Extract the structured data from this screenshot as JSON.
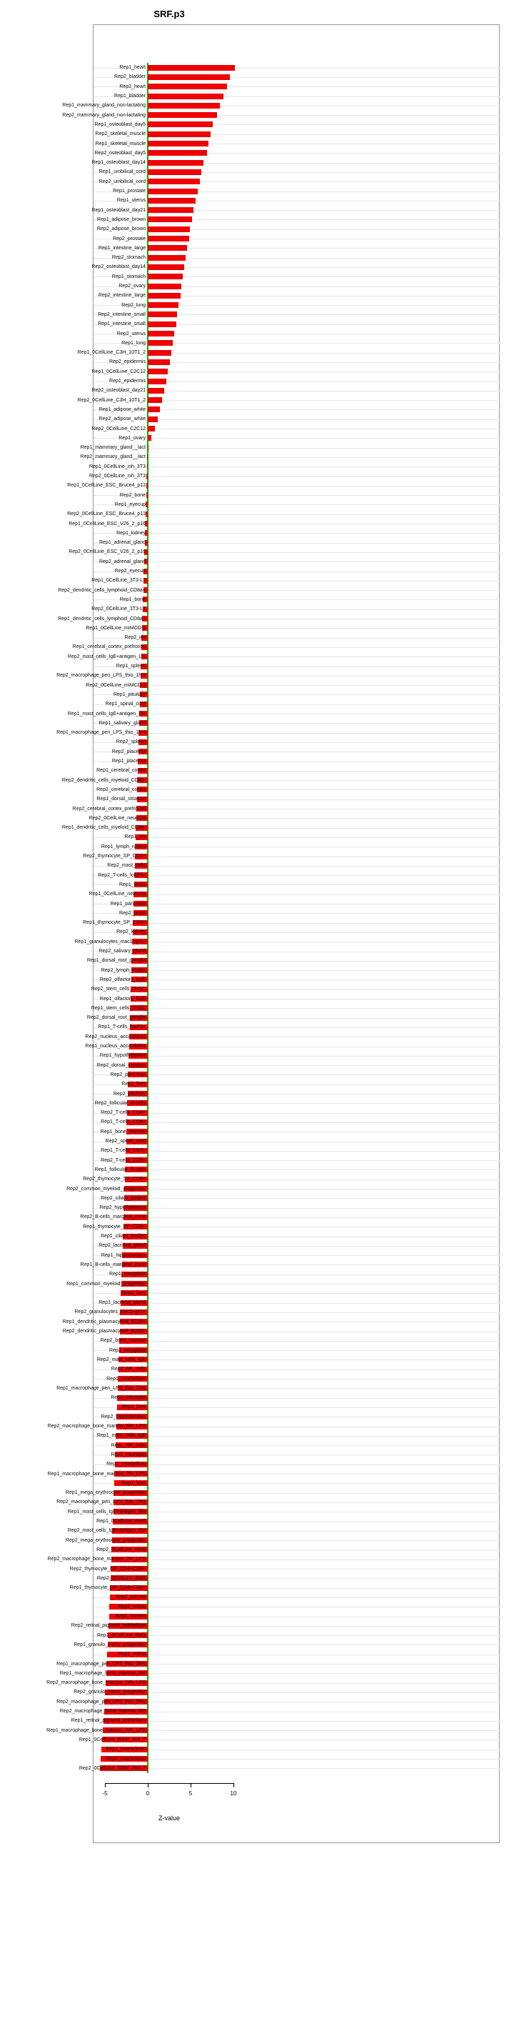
{
  "title": "SRF.p3",
  "xlabel": "Z-value",
  "colors": {
    "bar": "#ee0000",
    "zero_line": "#00bb00",
    "grid": "#e7e7e7",
    "frame": "#9a9a9a",
    "text": "#111111"
  },
  "chart_data": {
    "type": "bar",
    "orientation": "horizontal",
    "title": "SRF.p3",
    "xlabel": "Z-value",
    "ylabel": "",
    "xlim": [
      -6.5,
      11
    ],
    "x_ticks": [
      -5,
      0,
      5,
      10
    ],
    "x_tick_labels": [
      "-5",
      "0",
      "5",
      "10"
    ],
    "grid": true,
    "sorted": "descending",
    "legend": "none",
    "categories": [
      "Rep1_heart",
      "Rep2_bladder",
      "Rep2_heart",
      "Rep1_bladder",
      "Rep1_mammary_gland_non-lactating",
      "Rep2_mammary_gland_non-lactating",
      "Rep1_osteoblast_day5",
      "Rep2_skeletal_muscle",
      "Rep1_skeletal_muscle",
      "Rep2_osteoblast_day5",
      "Rep1_osteoblast_day14",
      "Rep1_umbilical_cord",
      "Rep2_umbilical_cord",
      "Rep1_prostate",
      "Rep1_uterus",
      "Rep1_osteoblast_day21",
      "Rep1_adipose_brown",
      "Rep2_adipose_brown",
      "Rep2_prostate",
      "Rep1_intestine_large",
      "Rep2_stomach",
      "Rep2_osteoblast_day14",
      "Rep1_stomach",
      "Rep2_ovary",
      "Rep2_intestine_large",
      "Rep2_lung",
      "Rep2_intestine_small",
      "Rep1_intestine_small",
      "Rep2_uterus",
      "Rep1_lung",
      "Rep1_0CellLine_C3H_10T1_2",
      "Rep2_epidermis",
      "Rep1_0CellLine_C2C12",
      "Rep1_epidermis",
      "Rep2_osteoblast_day21",
      "Rep2_0CellLine_C3H_10T1_2",
      "Rep1_adipose_white",
      "Rep2_adipose_white",
      "Rep2_0CellLine_C2C12",
      "Rep1_ovary",
      "Rep1_mammary_gland__lact",
      "Rep2_mammary_gland__lact",
      "Rep1_0CellLine_nih_3T3",
      "Rep2_0CellLine_nih_3T3",
      "Rep1_0CellLine_ESC_Bruce4_p13",
      "Rep2_bone",
      "Rep1_eyecup",
      "Rep2_0CellLine_ESC_Bruce4_p13",
      "Rep1_0CellLine_ESC_V26_2_p16",
      "Rep1_kidney",
      "Rep1_adrenal_gland",
      "Rep2_0CellLine_ESC_V26_2_p16",
      "Rep2_adrenal_gland",
      "Rep2_eyecup",
      "Rep1_0CellLine_3T3-L1",
      "Rep2_dendritic_cells_lymphoid_CD8a+",
      "Rep1_bone",
      "Rep2_0CellLine_3T3-L1",
      "Rep1_dendritic_cells_lymphoid_CD8a+",
      "Rep1_0CellLine_mIMCD-3",
      "Rep2_iris",
      "Rep1_cerebral_cortex_prefrontal",
      "Rep2_mast_cells_IgE+antigen_1hr",
      "Rep1_spleen",
      "Rep2_macrophage_peri_LPS_thio_1hrs",
      "Rep2_0CellLine_mIMCD-3",
      "Rep1_pituitary",
      "Rep1_spinal_cord",
      "Rep1_mast_cells_IgE+antigen_1hr",
      "Rep1_salivary_gland",
      "Rep1_macrophage_peri_LPS_thio_1hrs",
      "Rep2_spleen",
      "Rep2_placenta",
      "Rep1_placenta",
      "Rep1_cerebral_cortex",
      "Rep2_dendritic_cells_myeloid_CD8a-",
      "Rep2_cerebral_cortex",
      "Rep1_dorsal_striatum",
      "Rep2_cerebral_cortex_prefrontal",
      "Rep2_0CellLine_neuro2a",
      "Rep1_dendritic_cells_myeloid_CD8a-",
      "Rep1_iris",
      "Rep1_lymph_nodes",
      "Rep2_thymocyte_SP_CD4+",
      "Rep2_mast_cells",
      "Rep2_T-cells_foxP3+",
      "Rep1_testis",
      "Rep1_0CellLine_neuro2a",
      "Rep1_pancreas",
      "Rep2_testis",
      "Rep1_thymocyte_SP_CD4+",
      "Rep2_kidney",
      "Rep1_granulocytes_mac1+gr1+",
      "Rep2_salivary_gland",
      "Rep1_dorsal_root_ganglia",
      "Rep2_lymph_nodes",
      "Rep2_olfactory_bulb",
      "Rep2_stem_cells_0HSC",
      "Rep1_olfactory_bulb",
      "Rep1_stem_cells_0HSC",
      "Rep2_dorsal_root_ganglia",
      "Rep1_T-cells_foxP3+",
      "Rep2_nucleus_accumbens",
      "Rep1_nucleus_accumbens",
      "Rep1_hypothalamus",
      "Rep2_dorsal_striatum",
      "Rep2_pancreas",
      "Rep1_liver",
      "Rep2_pituitary",
      "Rep2_follicular_B-cells",
      "Rep2_T-cells_CD4+",
      "Rep1_T-cells_CD8+",
      "Rep1_bone_marrow",
      "Rep2_spinal_cord",
      "Rep1_T-cells_CD4+",
      "Rep2_T-cells_CD8+",
      "Rep1_follicular_B-cells",
      "Rep2_thymocyte_SP_CD8+",
      "Rep2_common_myeloid_progenitor",
      "Rep2_ciliary_bodies",
      "Rep2_hypothalamus",
      "Rep2_B-cells_marginal_zone",
      "Rep1_thymocyte_SP_CD8+",
      "Rep1_ciliary_bodies",
      "Rep2_lacrimal_gland",
      "Rep1_hippocampus",
      "Rep1_B-cells_marginal_zone",
      "Rep1_amygdala",
      "Rep1_common_myeloid_progenitor",
      "Rep2_liver",
      "Rep1_lacrimal_gland",
      "Rep2_granulocytes_mac1+gr1+",
      "Rep1_dendritic_plasmacytoid_B220+",
      "Rep2_dendritic_plasmacytoid_B220+",
      "Rep2_bone_marrow",
      "Rep2_amygdala",
      "Rep2_mast_cells_IgE",
      "Rep2_NK_cells",
      "Rep1_cerebellum",
      "Rep1_macrophage_peri_LPS_thio_7hrs",
      "Rep2_microglia",
      "Rep2_lens",
      "Rep2_hippocampus",
      "Rep2_macrophage_bone_marrow_6hr_LPS",
      "Rep1_mast_cells_IgE",
      "Rep1_NK_cells",
      "Rep1_microglia",
      "Rep2_cerebellum",
      "Rep1_macrophage_bone_marrow_2hr_LPS",
      "Rep1_lens",
      "Rep1_mega_erythrocyte_progenitor",
      "Rep2_macrophage_peri_LPS_thio_7hrs",
      "Rep1_mast_cells_IgE+antigen_6hr",
      "Rep1_0CellLine_min6",
      "Rep2_mast_cells_IgE+antigen_6hr",
      "Rep2_mega_erythrocyte_progenitor",
      "Rep2_0CellLine_min6",
      "Rep2_macrophage_bone_marrow_2hr_LPS",
      "Rep2_thymocyte_DP_CD4+CD8+",
      "Rep2_0CellLine_Baf3",
      "Rep1_thymocyte_DP_CD4+CD8+",
      "Rep2_cornea",
      "Rep2_retina",
      "Rep1_cornea",
      "Rep2_retinal_pigment_epithelium",
      "Rep1_0CellLine_Baf3",
      "Rep1_granulo_mono_progenitor",
      "Rep1_retina",
      "Rep1_macrophage_peri_LPS_thio_0hrs",
      "Rep1_macrophage_bone_marrow_0hr",
      "Rep2_macrophage_bone_marrow_24h_LPS",
      "Rep2_granulo_mono_progenitor",
      "Rep2_macrophage_peri_LPS_thio_0hrs",
      "Rep2_macrophage_bone_marrow_0hr",
      "Rep1_retinal_pigment_epithelium",
      "Rep1_macrophage_bone_marrow_24h_LPS",
      "Rep1_0CellLine_RAW_264_7",
      "Rep1_osteoclasts",
      "Rep2_osteoclasts",
      "Rep2_0CellLine_RAW_264_7"
    ],
    "values": [
      10.2,
      9.6,
      9.25,
      8.85,
      8.4,
      8.1,
      7.6,
      7.35,
      7.1,
      6.9,
      6.5,
      6.25,
      6.05,
      5.8,
      5.55,
      5.35,
      5.15,
      4.95,
      4.8,
      4.6,
      4.45,
      4.25,
      4.1,
      3.95,
      3.8,
      3.6,
      3.45,
      3.3,
      3.1,
      2.95,
      2.75,
      2.55,
      2.35,
      2.15,
      1.95,
      1.7,
      1.45,
      1.15,
      0.8,
      0.4,
      -0.03,
      -0.06,
      -0.1,
      -0.13,
      -0.16,
      -0.2,
      -0.23,
      -0.26,
      -0.3,
      -0.33,
      -0.36,
      -0.4,
      -0.43,
      -0.47,
      -0.5,
      -0.54,
      -0.57,
      -0.61,
      -0.64,
      -0.68,
      -0.71,
      -0.75,
      -0.78,
      -0.82,
      -0.85,
      -0.88,
      -0.92,
      -0.95,
      -0.99,
      -1.02,
      -1.05,
      -1.09,
      -1.12,
      -1.15,
      -1.19,
      -1.22,
      -1.26,
      -1.29,
      -1.33,
      -1.36,
      -1.39,
      -1.43,
      -1.46,
      -1.5,
      -1.53,
      -1.56,
      -1.6,
      -1.63,
      -1.67,
      -1.7,
      -1.74,
      -1.77,
      -1.81,
      -1.84,
      -1.88,
      -1.91,
      -1.95,
      -1.98,
      -2.02,
      -2.05,
      -2.09,
      -2.12,
      -2.16,
      -2.19,
      -2.23,
      -2.26,
      -2.3,
      -2.33,
      -2.37,
      -2.4,
      -2.44,
      -2.47,
      -2.51,
      -2.54,
      -2.58,
      -2.61,
      -2.65,
      -2.68,
      -2.72,
      -2.76,
      -2.8,
      -2.83,
      -2.87,
      -2.91,
      -2.94,
      -2.98,
      -3.02,
      -3.05,
      -3.09,
      -3.13,
      -3.17,
      -3.21,
      -3.25,
      -3.29,
      -3.33,
      -3.37,
      -3.41,
      -3.44,
      -3.48,
      -3.52,
      -3.56,
      -3.6,
      -3.64,
      -3.68,
      -3.72,
      -3.76,
      -3.8,
      -3.84,
      -3.88,
      -3.92,
      -3.96,
      -4.0,
      -4.04,
      -4.09,
      -4.13,
      -4.17,
      -4.21,
      -4.25,
      -4.3,
      -4.34,
      -4.39,
      -4.44,
      -4.49,
      -4.54,
      -4.59,
      -4.64,
      -4.69,
      -4.74,
      -4.8,
      -4.85,
      -4.92,
      -4.98,
      -5.05,
      -5.12,
      -5.18,
      -5.26,
      -5.34,
      -5.42,
      -5.5,
      -5.6
    ]
  }
}
